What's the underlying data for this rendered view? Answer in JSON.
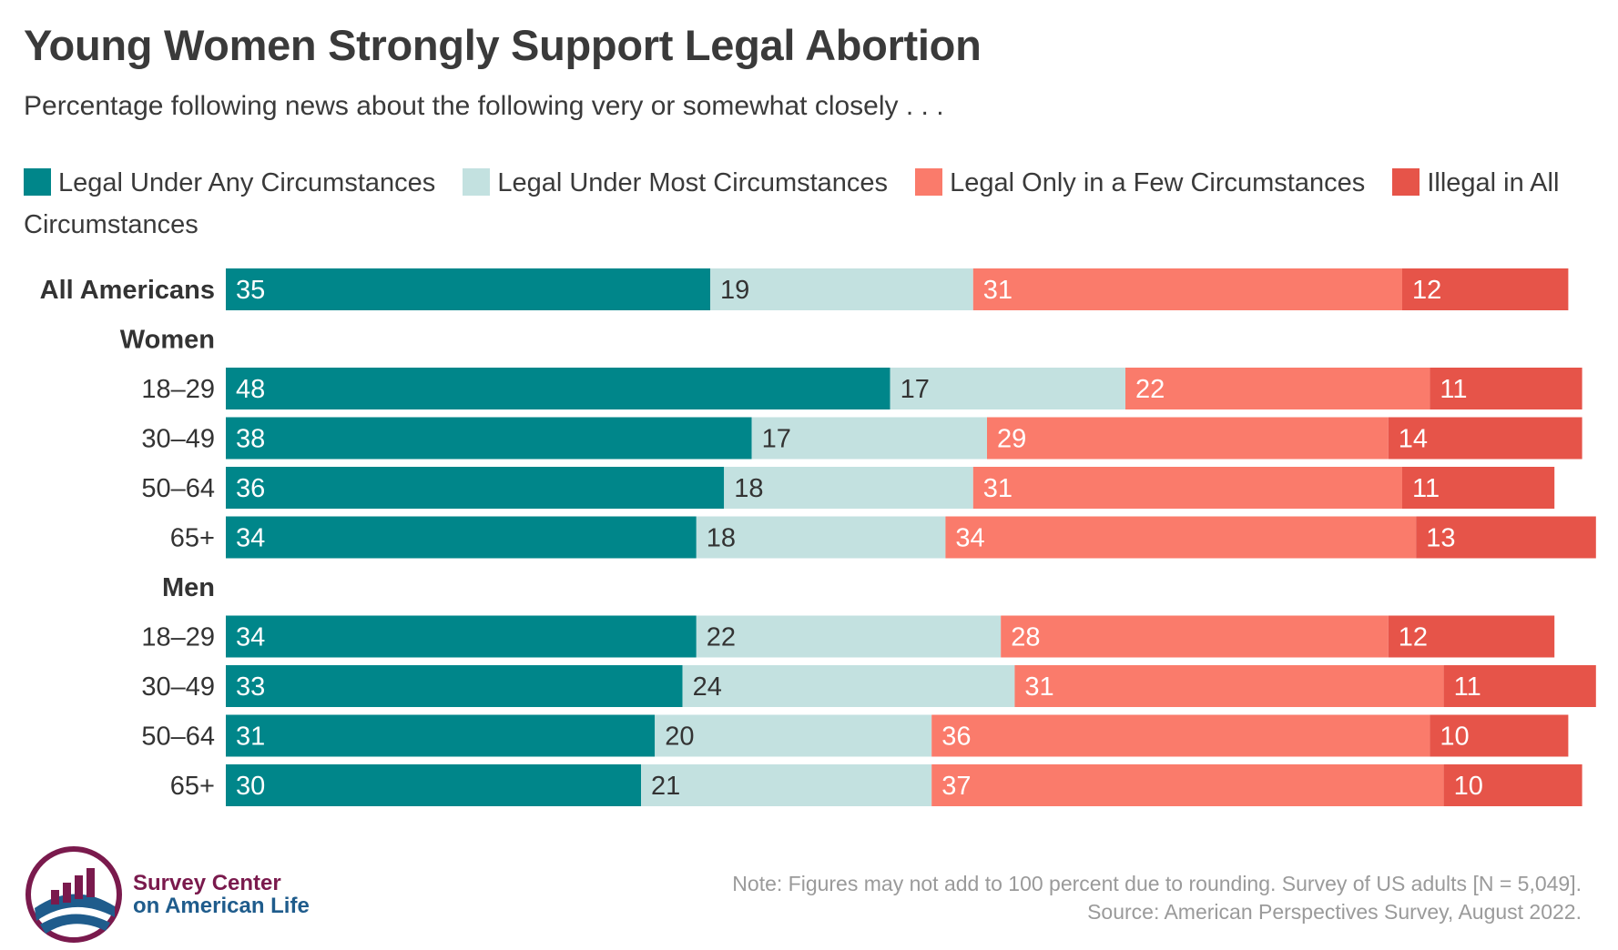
{
  "chart_data": {
    "type": "bar",
    "orientation": "horizontal",
    "stacked": true,
    "title": "Young Women Strongly Support Legal Abortion",
    "subtitle": "Percentage following news about the following very or somewhat closely . . .",
    "legend_placement": "top",
    "grid": false,
    "xlim": [
      0,
      100
    ],
    "groups": [
      {
        "label": "",
        "rows": [
          {
            "label": "All Americans",
            "values": [
              35,
              19,
              31,
              12
            ]
          }
        ]
      },
      {
        "label": "Women",
        "rows": [
          {
            "label": "18–29",
            "values": [
              48,
              17,
              22,
              11
            ]
          },
          {
            "label": "30–49",
            "values": [
              38,
              17,
              29,
              14
            ]
          },
          {
            "label": "50–64",
            "values": [
              36,
              18,
              31,
              11
            ]
          },
          {
            "label": "65+",
            "values": [
              34,
              18,
              34,
              13
            ]
          }
        ]
      },
      {
        "label": "Men",
        "rows": [
          {
            "label": "18–29",
            "values": [
              34,
              22,
              28,
              12
            ]
          },
          {
            "label": "30–49",
            "values": [
              33,
              24,
              31,
              11
            ]
          },
          {
            "label": "50–64",
            "values": [
              31,
              20,
              36,
              10
            ]
          },
          {
            "label": "65+",
            "values": [
              30,
              21,
              37,
              10
            ]
          }
        ]
      }
    ],
    "series": [
      {
        "name": "Legal Under Any Circumstances",
        "color": "#00868a",
        "text_color": "#ffffff"
      },
      {
        "name": "Legal Under Most Circumstances",
        "color": "#c3e1e0",
        "text_color": "#333333"
      },
      {
        "name": "Legal Only in a Few Circumstances",
        "color": "#fa7b6b",
        "text_color": "#ffffff"
      },
      {
        "name": "Illegal in All Circumstances",
        "color": "#e65449",
        "text_color": "#ffffff"
      }
    ]
  },
  "footer": {
    "note_line1": "Note: Figures may not add to 100 percent due to rounding. Survey of US adults [N = 5,049].",
    "note_line2": "Source: American Perspectives Survey, August 2022."
  },
  "logo": {
    "line1": "Survey Center",
    "line2": "on American Life",
    "colors": {
      "primary": "#7a1a4d",
      "secondary": "#1f5c8c"
    }
  }
}
